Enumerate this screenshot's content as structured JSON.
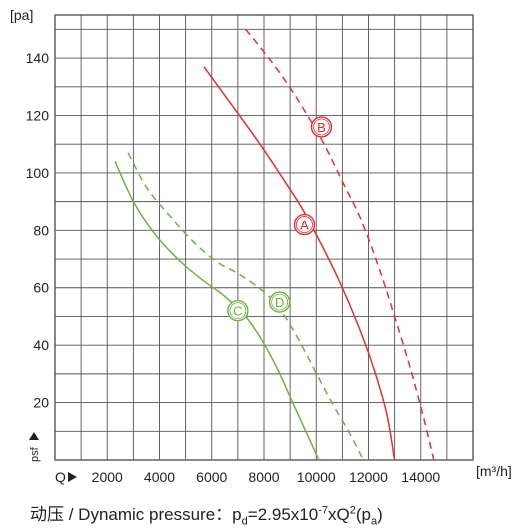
{
  "chart_data": {
    "type": "line",
    "y_unit": "[pa]",
    "x_unit": "[m³/h]",
    "y_side_label": "psf",
    "x_side_label": "Q",
    "xlim": [
      0,
      16000
    ],
    "ylim": [
      0,
      155
    ],
    "xticks": [
      2000,
      4000,
      6000,
      8000,
      10000,
      12000,
      14000
    ],
    "yticks": [
      20,
      40,
      60,
      80,
      100,
      120,
      140
    ],
    "grid": true,
    "series": [
      {
        "name": "A",
        "color": "#e03030",
        "style": "solid",
        "points": [
          [
            5700,
            137
          ],
          [
            6500,
            127
          ],
          [
            7300,
            117
          ],
          [
            8000,
            108
          ],
          [
            8800,
            97
          ],
          [
            9500,
            87
          ],
          [
            10200,
            75
          ],
          [
            10900,
            62
          ],
          [
            11600,
            47
          ],
          [
            12200,
            32
          ],
          [
            12700,
            16
          ],
          [
            13000,
            0
          ]
        ]
      },
      {
        "name": "B",
        "color": "#e03030",
        "style": "dashed",
        "points": [
          [
            7300,
            150
          ],
          [
            8100,
            141
          ],
          [
            8900,
            131
          ],
          [
            9600,
            121
          ],
          [
            10300,
            110
          ],
          [
            11000,
            97
          ],
          [
            11700,
            84
          ],
          [
            12400,
            67
          ],
          [
            13000,
            50
          ],
          [
            13600,
            32
          ],
          [
            14100,
            15
          ],
          [
            14500,
            0
          ]
        ]
      },
      {
        "name": "C",
        "color": "#6cb33e",
        "style": "solid",
        "points": [
          [
            2300,
            104
          ],
          [
            3000,
            90
          ],
          [
            3800,
            79
          ],
          [
            4700,
            70
          ],
          [
            5600,
            63
          ],
          [
            6500,
            57
          ],
          [
            7300,
            50
          ],
          [
            7900,
            42
          ],
          [
            8500,
            32
          ],
          [
            9100,
            20
          ],
          [
            9700,
            8
          ],
          [
            10100,
            0
          ]
        ]
      },
      {
        "name": "D",
        "color": "#6cb33e",
        "style": "dashed",
        "points": [
          [
            2800,
            107
          ],
          [
            3500,
            95
          ],
          [
            4400,
            85
          ],
          [
            5300,
            76
          ],
          [
            6200,
            69
          ],
          [
            7000,
            65
          ],
          [
            7800,
            60
          ],
          [
            8500,
            54
          ],
          [
            9200,
            44
          ],
          [
            9900,
            32
          ],
          [
            10600,
            20
          ],
          [
            11300,
            9
          ],
          [
            11800,
            0
          ]
        ]
      }
    ],
    "markers": [
      {
        "label": "A",
        "x": 9550,
        "y": 82,
        "color": "#e03030"
      },
      {
        "label": "B",
        "x": 10200,
        "y": 116,
        "color": "#e03030"
      },
      {
        "label": "C",
        "x": 7000,
        "y": 52,
        "color": "#6cb33e"
      },
      {
        "label": "D",
        "x": 8600,
        "y": 55,
        "color": "#6cb33e"
      }
    ]
  },
  "footer": {
    "prefix": "动压 / Dynamic pressure：",
    "p": "p",
    "p_sub": "d",
    "eq": "=2.95x10",
    "exp": "-7",
    "mid": "xQ",
    "sq": "2",
    "open": "(p",
    "pa_sub": "a",
    "close": ")"
  }
}
